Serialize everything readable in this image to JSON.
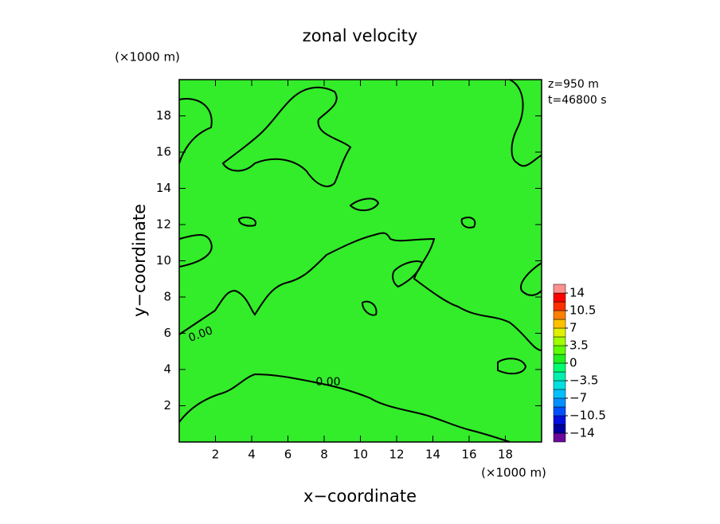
{
  "chart_data": {
    "type": "contour",
    "title": "zonal velocity",
    "x_label": "x−coordinate",
    "y_label": "y−coordinate",
    "x_unit": "(×1000 m)",
    "y_unit": "(×1000 m)",
    "annotations": [
      "z=950 m",
      "t=46800 s"
    ],
    "contour_labels": [
      "0.00",
      "0.00"
    ],
    "xlim": [
      0,
      20
    ],
    "xticks": [
      2,
      4,
      6,
      8,
      10,
      12,
      14,
      16,
      18
    ],
    "ylim": [
      0,
      20
    ],
    "yticks": [
      2,
      4,
      6,
      8,
      10,
      12,
      14,
      16,
      18
    ],
    "field_color": "#33ec2a",
    "colorbar": {
      "lim": [
        -15.75,
        15.75
      ],
      "ticks": [
        {
          "value": 14,
          "label": "14"
        },
        {
          "value": 10.5,
          "label": "10.5"
        },
        {
          "value": 7,
          "label": "7"
        },
        {
          "value": 3.5,
          "label": "3.5"
        },
        {
          "value": 0,
          "label": "0"
        },
        {
          "value": -3.5,
          "label": "−3.5"
        },
        {
          "value": -7,
          "label": "−7"
        },
        {
          "value": -10.5,
          "label": "−10.5"
        },
        {
          "value": -14,
          "label": "−14"
        }
      ],
      "colors": [
        "#6a0a9a",
        "#0000a0",
        "#0010e0",
        "#0050ff",
        "#0090ff",
        "#00c0ff",
        "#00e0e0",
        "#00f0b0",
        "#00ff70",
        "#20f020",
        "#60ff00",
        "#a0ff00",
        "#e0f000",
        "#ffc000",
        "#ff8000",
        "#ff3000",
        "#ff0000",
        "#ff9090"
      ]
    }
  }
}
